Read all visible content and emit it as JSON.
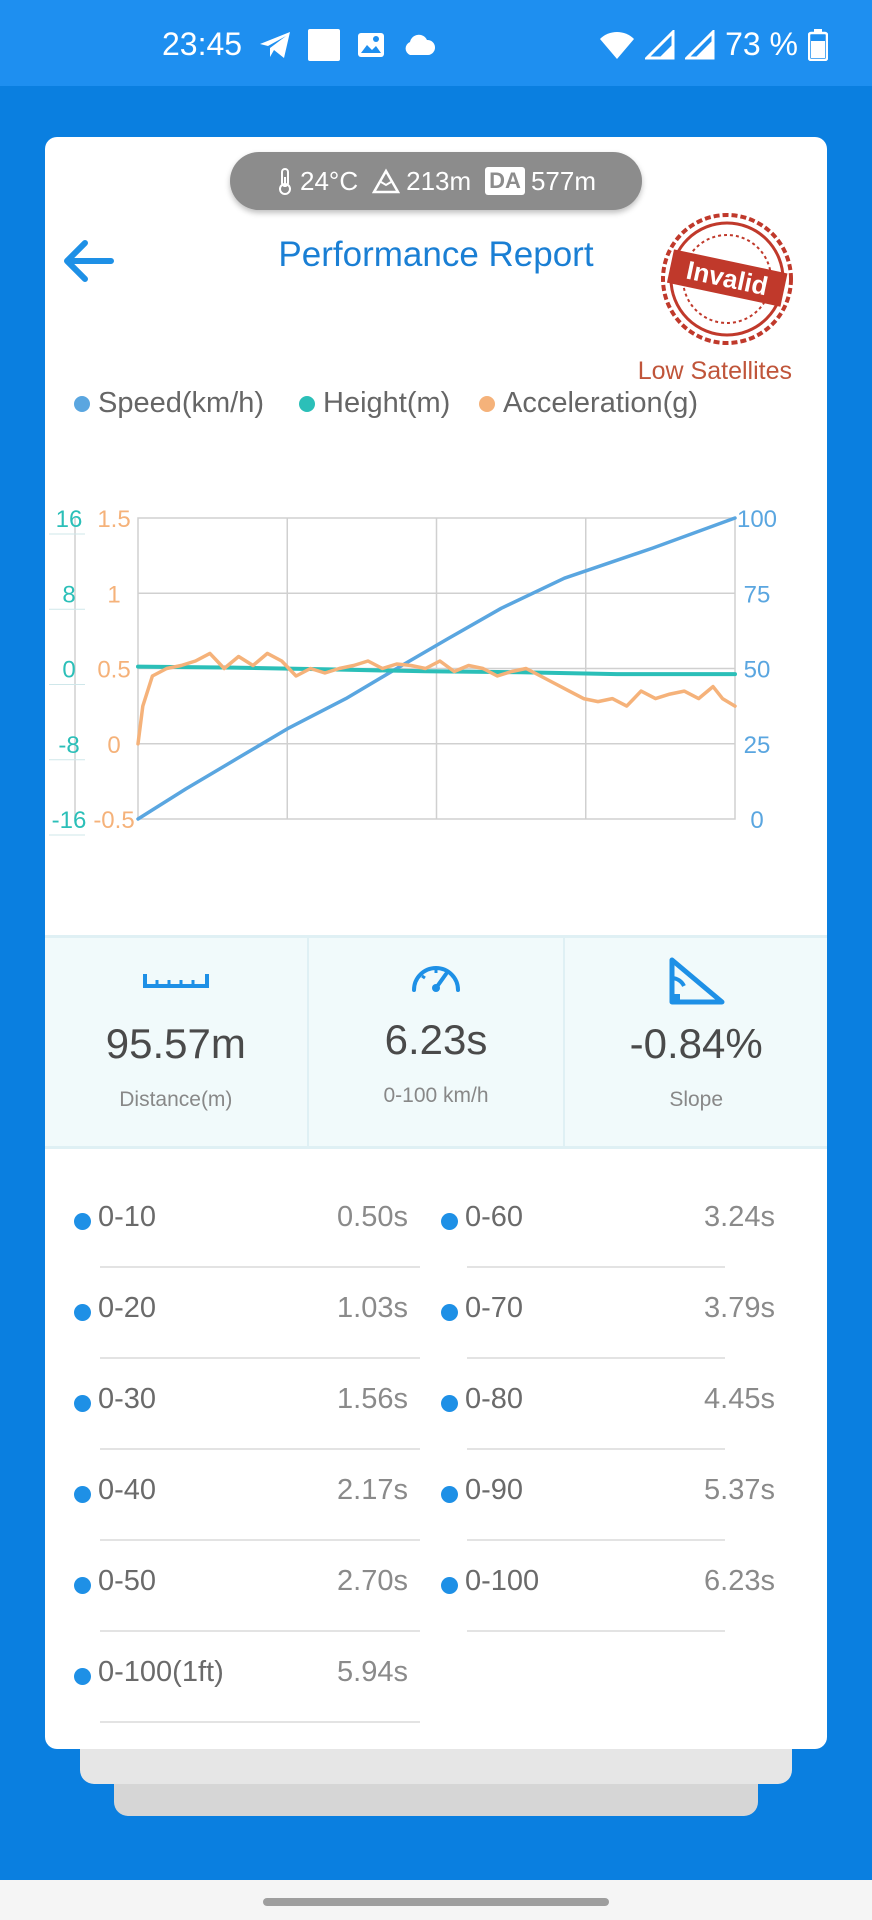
{
  "status_bar": {
    "time": "23:45",
    "battery": "73 %"
  },
  "environment": {
    "temperature": "24°C",
    "altitude": "213m",
    "da_label": "DA",
    "density_altitude": "577m"
  },
  "header": {
    "title": "Performance Report",
    "stamp_text": "Invalid",
    "stamp_note": "Low Satellites"
  },
  "colors": {
    "speed": "#5aa6e0",
    "height": "#2bbfb8",
    "acceleration": "#f5b27a",
    "accent": "#1e90e6",
    "stamp": "#c0392b"
  },
  "chart_data": {
    "type": "line",
    "x_range": [
      0,
      6.23
    ],
    "grid": true,
    "series": [
      {
        "name": "Speed(km/h)",
        "axis": "right",
        "ylim": [
          0,
          100
        ],
        "x": [
          0,
          0.5,
          1.03,
          1.56,
          2.17,
          2.7,
          3.24,
          3.79,
          4.45,
          5.37,
          6.23
        ],
        "y": [
          0,
          10,
          20,
          30,
          40,
          50,
          60,
          70,
          80,
          90,
          100
        ]
      },
      {
        "name": "Height(m)",
        "axis": "left-outer",
        "ylim": [
          -16,
          16
        ],
        "x": [
          0,
          1,
          2,
          3,
          4,
          5,
          6.23
        ],
        "y": [
          0.2,
          0.1,
          -0.1,
          -0.3,
          -0.4,
          -0.6,
          -0.6
        ]
      },
      {
        "name": "Acceleration(g)",
        "axis": "left-inner",
        "ylim": [
          -0.5,
          1.5
        ],
        "x": [
          0,
          0.05,
          0.15,
          0.3,
          0.45,
          0.6,
          0.75,
          0.9,
          1.05,
          1.2,
          1.35,
          1.5,
          1.65,
          1.8,
          1.95,
          2.1,
          2.25,
          2.4,
          2.55,
          2.7,
          2.85,
          3.0,
          3.15,
          3.3,
          3.45,
          3.6,
          3.75,
          3.9,
          4.05,
          4.2,
          4.35,
          4.5,
          4.65,
          4.8,
          4.95,
          5.1,
          5.25,
          5.4,
          5.55,
          5.7,
          5.85,
          6.0,
          6.1,
          6.23
        ],
        "y": [
          0.0,
          0.25,
          0.45,
          0.5,
          0.52,
          0.55,
          0.6,
          0.5,
          0.58,
          0.52,
          0.6,
          0.55,
          0.45,
          0.5,
          0.47,
          0.5,
          0.52,
          0.55,
          0.5,
          0.53,
          0.52,
          0.5,
          0.55,
          0.48,
          0.52,
          0.5,
          0.45,
          0.48,
          0.5,
          0.45,
          0.4,
          0.35,
          0.3,
          0.28,
          0.3,
          0.25,
          0.35,
          0.3,
          0.33,
          0.35,
          0.3,
          0.38,
          0.3,
          0.25
        ]
      }
    ],
    "left_outer_ticks": [
      "16",
      "8",
      "0",
      "-8",
      "-16"
    ],
    "left_inner_ticks": [
      "1.5",
      "1",
      "0.5",
      "0",
      "-0.5"
    ],
    "right_ticks": [
      "100",
      "75",
      "50",
      "25",
      "0"
    ]
  },
  "stats": [
    {
      "value": "95.57m",
      "label": "Distance(m)",
      "icon": "ruler-icon"
    },
    {
      "value": "6.23s",
      "label": "0-100 km/h",
      "icon": "speedometer-icon"
    },
    {
      "value": "-0.84%",
      "label": "Slope",
      "icon": "slope-icon"
    }
  ],
  "splits": {
    "left": [
      {
        "label": "0-10",
        "value": "0.50s"
      },
      {
        "label": "0-20",
        "value": "1.03s"
      },
      {
        "label": "0-30",
        "value": "1.56s"
      },
      {
        "label": "0-40",
        "value": "2.17s"
      },
      {
        "label": "0-50",
        "value": "2.70s"
      },
      {
        "label": "0-100(1ft)",
        "value": "5.94s"
      }
    ],
    "right": [
      {
        "label": "0-60",
        "value": "3.24s"
      },
      {
        "label": "0-70",
        "value": "3.79s"
      },
      {
        "label": "0-80",
        "value": "4.45s"
      },
      {
        "label": "0-90",
        "value": "5.37s"
      },
      {
        "label": "0-100",
        "value": "6.23s"
      }
    ]
  }
}
